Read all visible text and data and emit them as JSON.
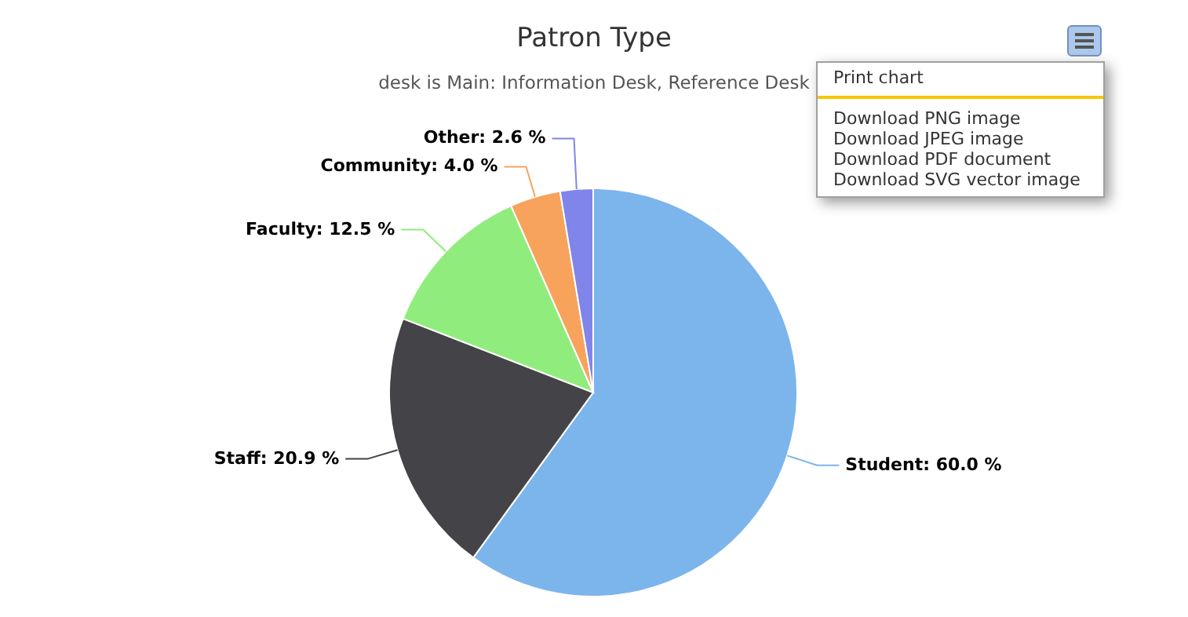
{
  "chart_data": {
    "type": "pie",
    "title": "Patron Type",
    "subtitle": "desk is Main: Information Desk, Reference Desk",
    "categories": [
      "Student",
      "Staff",
      "Faculty",
      "Community",
      "Other"
    ],
    "values": [
      60.0,
      20.9,
      12.5,
      4.0,
      2.6
    ],
    "value_labels": [
      "60.0 %",
      "20.9 %",
      "12.5 %",
      "4.0 %",
      "2.6 %"
    ],
    "colors": [
      "#7cb5ec",
      "#434348",
      "#90ed7d",
      "#f7a35c",
      "#8085e9"
    ],
    "annotations": [
      "Print chart",
      "Download PNG image",
      "Download JPEG image",
      "Download PDF document",
      "Download SVG vector image"
    ]
  }
}
